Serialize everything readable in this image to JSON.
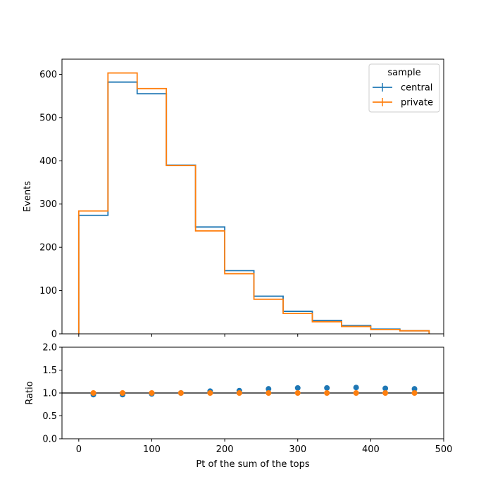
{
  "chart_data": [
    {
      "type": "histogram",
      "bin_edges": [
        0,
        40,
        80,
        120,
        160,
        200,
        240,
        280,
        320,
        360,
        400,
        440,
        480
      ],
      "ylabel": "Events",
      "xlim": [
        -23,
        500
      ],
      "ylim": [
        0,
        635
      ],
      "yticks": [
        0,
        100,
        200,
        300,
        400,
        500,
        600
      ],
      "xticks": [
        0,
        100,
        200,
        300,
        400,
        500
      ],
      "legend": {
        "title": "sample",
        "placement": "top-right"
      },
      "series": [
        {
          "name": "central",
          "color": "#1f77b4",
          "values": [
            274,
            582,
            555,
            390,
            247,
            146,
            87,
            52,
            31,
            19,
            11,
            7
          ]
        },
        {
          "name": "private",
          "color": "#ff7f0e",
          "values": [
            284,
            603,
            567,
            389,
            238,
            139,
            80,
            47,
            28,
            17,
            10,
            7
          ]
        }
      ]
    },
    {
      "type": "scatter",
      "xlabel": "Pt of the sum of the tops",
      "ylabel": "Ratio",
      "xlim": [
        -23,
        500
      ],
      "ylim": [
        0,
        2
      ],
      "yticks": [
        "0.0",
        "0.5",
        "1.0",
        "1.5",
        "2.0"
      ],
      "xticks": [
        "0",
        "100",
        "200",
        "300",
        "400",
        "500"
      ],
      "reference_line": 1.0,
      "x": [
        20,
        60,
        100,
        140,
        180,
        220,
        260,
        300,
        340,
        380,
        420,
        460
      ],
      "series": [
        {
          "name": "central",
          "color": "#1f77b4",
          "values": [
            0.965,
            0.965,
            0.98,
            1.0,
            1.04,
            1.05,
            1.09,
            1.11,
            1.11,
            1.12,
            1.1,
            1.09
          ]
        },
        {
          "name": "private",
          "color": "#ff7f0e",
          "values": [
            1.0,
            1.0,
            1.0,
            1.0,
            1.0,
            1.0,
            1.0,
            1.0,
            1.0,
            1.0,
            1.0,
            1.0
          ]
        }
      ]
    }
  ]
}
